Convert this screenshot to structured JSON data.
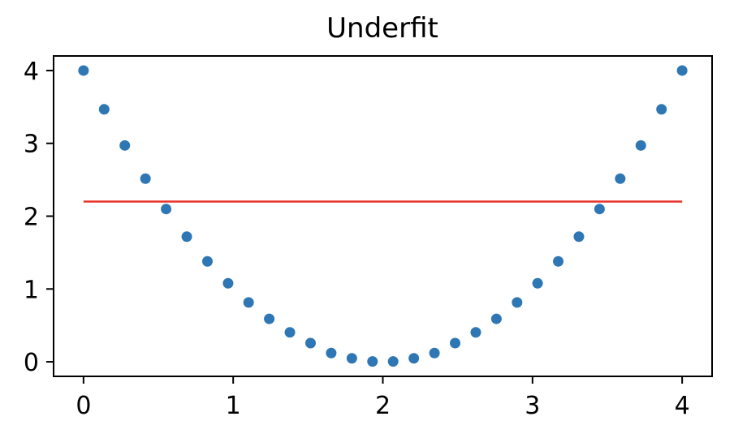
{
  "chart_data": {
    "type": "scatter",
    "title": "Underfit",
    "xlabel": "",
    "ylabel": "",
    "xlim": [
      -0.2,
      4.2
    ],
    "ylim": [
      -0.2,
      4.2
    ],
    "xticks": [
      0,
      1,
      2,
      3,
      4
    ],
    "yticks": [
      0,
      1,
      2,
      3,
      4
    ],
    "xtick_labels": [
      "0",
      "1",
      "2",
      "3",
      "4"
    ],
    "ytick_labels": [
      "0",
      "1",
      "2",
      "3",
      "4"
    ],
    "grid": false,
    "series": [
      {
        "type": "scatter",
        "color": "#2e77b4",
        "x": [
          0.0,
          0.138,
          0.276,
          0.414,
          0.552,
          0.69,
          0.828,
          0.966,
          1.103,
          1.241,
          1.379,
          1.517,
          1.655,
          1.793,
          1.931,
          2.069,
          2.207,
          2.345,
          2.483,
          2.621,
          2.759,
          2.897,
          3.034,
          3.172,
          3.31,
          3.448,
          3.586,
          3.724,
          3.862,
          4.0
        ],
        "y": [
          4.0,
          3.467,
          2.971,
          2.515,
          2.098,
          1.719,
          1.379,
          1.078,
          0.815,
          0.59,
          0.404,
          0.257,
          0.12,
          0.048,
          0.005,
          0.005,
          0.048,
          0.12,
          0.257,
          0.404,
          0.59,
          0.815,
          1.078,
          1.379,
          1.719,
          2.098,
          2.515,
          2.971,
          3.467,
          4.0
        ]
      },
      {
        "type": "line",
        "color": "#e8322b",
        "x": [
          0,
          4
        ],
        "y": [
          2.2,
          2.2
        ]
      }
    ]
  }
}
